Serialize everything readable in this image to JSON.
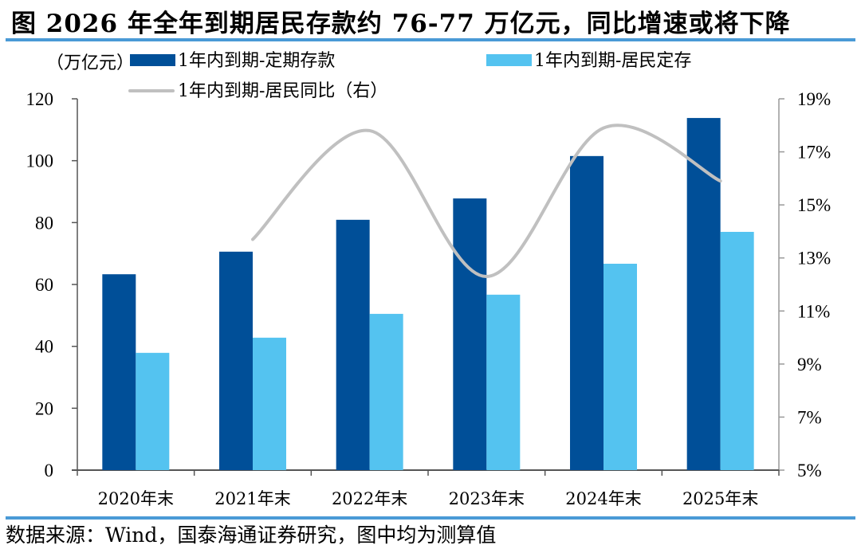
{
  "title": "图  2026 年全年到期居民存款约 76-77 万亿元，同比增速或将下降",
  "source": "数据来源：Wind，国泰海通证券研究，图中均为测算值",
  "colors": {
    "dark_bar": "#004f98",
    "light_bar": "#54c3f0",
    "line": "#c0c0c0",
    "rule": "#4a9ad6",
    "axis": "#555555"
  },
  "chart_data": {
    "type": "bar",
    "title": "图  2026 年全年到期居民存款约 76-77 万亿元，同比增速或将下降",
    "left_axis_unit": "（万亿元）",
    "categories": [
      "2020年末",
      "2021年末",
      "2022年末",
      "2023年末",
      "2024年末",
      "2025年末"
    ],
    "ylim": [
      0,
      120
    ],
    "yticks": [
      "0",
      "20",
      "40",
      "60",
      "80",
      "100",
      "120"
    ],
    "y2lim": [
      5,
      19
    ],
    "y2ticks": [
      "5%",
      "7%",
      "9%",
      "11%",
      "13%",
      "15%",
      "17%",
      "19%"
    ],
    "legend_placement": "top",
    "series": [
      {
        "name": "1年内到期-定期存款",
        "type": "bar",
        "axis": "left",
        "values": [
          63.3,
          70.6,
          80.9,
          87.8,
          101.5,
          113.8
        ]
      },
      {
        "name": "1年内到期-居民定存",
        "type": "bar",
        "axis": "left",
        "values": [
          37.9,
          42.8,
          50.5,
          56.7,
          66.7,
          77.0
        ]
      },
      {
        "name": "1年内到期-居民同比（右）",
        "type": "line",
        "axis": "right",
        "smooth": true,
        "values": [
          null,
          13.7,
          17.8,
          12.3,
          17.9,
          15.9
        ]
      }
    ]
  }
}
